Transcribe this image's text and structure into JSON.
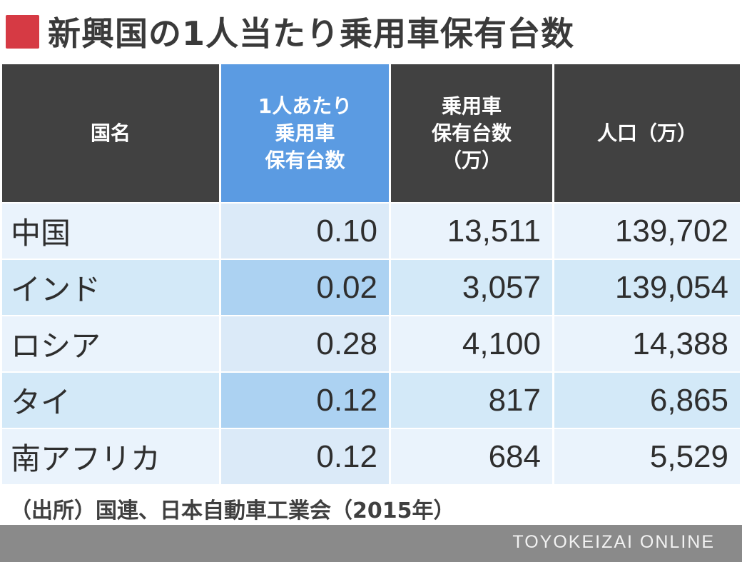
{
  "title": {
    "marker_color": "#d63a44",
    "text": "新興国の1人当たり乗用車保有台数"
  },
  "table": {
    "headers": [
      "国名",
      "1人あたり\n乗用車\n保有台数",
      "乗用車\n保有台数\n（万）",
      "人口（万）"
    ],
    "rows": [
      {
        "country": "中国",
        "per_capita": "0.10",
        "cars": "13,511",
        "population": "139,702"
      },
      {
        "country": "インド",
        "per_capita": "0.02",
        "cars": "3,057",
        "population": "139,054"
      },
      {
        "country": "ロシア",
        "per_capita": "0.28",
        "cars": "4,100",
        "population": "14,388"
      },
      {
        "country": "タイ",
        "per_capita": "0.12",
        "cars": "817",
        "population": "6,865"
      },
      {
        "country": "南アフリカ",
        "per_capita": "0.12",
        "cars": "684",
        "population": "5,529"
      }
    ]
  },
  "source": "（出所）国連、日本自動車工業会（2015年）",
  "footer": {
    "brand": "TOYOKEIZAI ONLINE"
  },
  "colors": {
    "header_dark": "#414141",
    "header_highlight": "#5b9be2",
    "row_light": "#eaf3fc",
    "row_alt": "#d3e9f8",
    "footer_bg": "#8a8a8a"
  },
  "chart_data": {
    "type": "table",
    "title": "新興国の1人当たり乗用車保有台数",
    "columns": [
      "国名",
      "1人あたり乗用車保有台数",
      "乗用車保有台数（万）",
      "人口（万）"
    ],
    "rows": [
      [
        "中国",
        0.1,
        13511,
        139702
      ],
      [
        "インド",
        0.02,
        3057,
        139054
      ],
      [
        "ロシア",
        0.28,
        4100,
        14388
      ],
      [
        "タイ",
        0.12,
        817,
        6865
      ],
      [
        "南アフリカ",
        0.12,
        684,
        5529
      ]
    ],
    "source": "（出所）国連、日本自動車工業会（2015年）"
  }
}
